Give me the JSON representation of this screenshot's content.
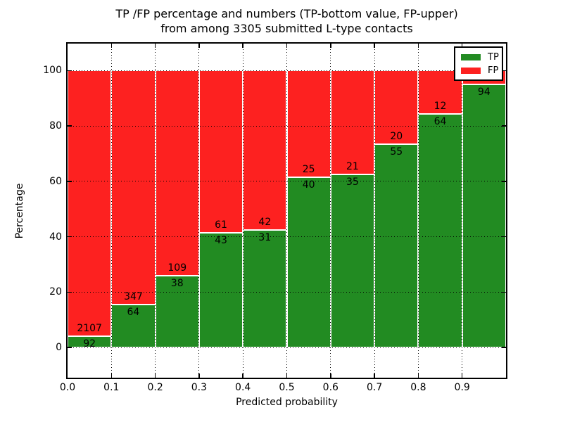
{
  "title": {
    "line1": "TP /FP percentage and numbers (TP-bottom value, FP-upper)",
    "line2": "from among 3305 submitted L-type contacts"
  },
  "axes": {
    "xlabel": "Predicted probability",
    "ylabel": "Percentage",
    "xtick_labels": [
      "0.0",
      "0.1",
      "0.2",
      "0.3",
      "0.4",
      "0.5",
      "0.6",
      "0.7",
      "0.8",
      "0.9"
    ],
    "ytick_values": [
      0,
      20,
      40,
      60,
      80,
      100
    ],
    "ytick_labels": [
      "0",
      "20",
      "40",
      "60",
      "80",
      "100"
    ]
  },
  "legend": {
    "items": [
      {
        "label": "TP",
        "color": "#228b22"
      },
      {
        "label": "FP",
        "color": "#fd2120"
      }
    ]
  },
  "colors": {
    "tp": "#228b22",
    "fp": "#fd2120",
    "bar_edge": "#ffffff",
    "grid": "#000000",
    "background": "#ffffff"
  },
  "chart_data": {
    "type": "bar",
    "stacked": true,
    "title": "TP /FP percentage and numbers (TP-bottom value, FP-upper) from among 3305 submitted L-type contacts",
    "xlabel": "Predicted probability",
    "ylabel": "Percentage",
    "xlim": [
      0.0,
      1.0
    ],
    "ylim": [
      -11,
      110
    ],
    "grid": "dotted",
    "legend_position": "upper right",
    "total_contacts": 3305,
    "bin_edges": [
      0.0,
      0.1,
      0.2,
      0.3,
      0.4,
      0.5,
      0.6,
      0.7,
      0.8,
      0.9,
      1.0
    ],
    "categories": [
      "0.0-0.1",
      "0.1-0.2",
      "0.2-0.3",
      "0.3-0.4",
      "0.4-0.5",
      "0.5-0.6",
      "0.6-0.7",
      "0.7-0.8",
      "0.8-0.9",
      "0.9-1.0"
    ],
    "series": [
      {
        "name": "TP",
        "color": "#228b22",
        "percent": [
          4.18,
          15.57,
          25.85,
          41.35,
          42.47,
          61.54,
          62.5,
          73.33,
          84.21,
          94.95
        ],
        "count_labels": [
          "92",
          "64",
          "38",
          "43",
          "31",
          "40",
          "35",
          "55",
          "64",
          "94"
        ]
      },
      {
        "name": "FP",
        "color": "#fd2120",
        "percent": [
          95.82,
          84.43,
          74.15,
          58.65,
          57.53,
          38.46,
          37.5,
          26.67,
          15.79,
          5.05
        ],
        "count_labels": [
          "2107",
          "347",
          "109",
          "61",
          "42",
          "25",
          "21",
          "20",
          "12",
          ""
        ]
      }
    ]
  }
}
